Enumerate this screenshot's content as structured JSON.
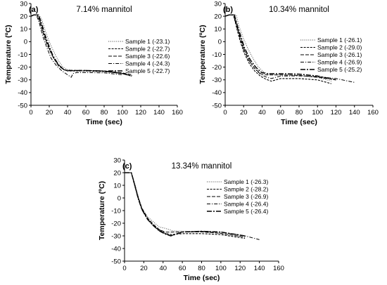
{
  "chart_data": [
    {
      "type": "line",
      "panel_label": "(a)",
      "title": "7.14% mannitol",
      "xlabel": "Time (sec)",
      "ylabel": "Temperature (ºC)",
      "xlim": [
        0,
        160
      ],
      "ylim": [
        -50,
        30
      ],
      "xticks": [
        0,
        20,
        40,
        60,
        80,
        100,
        120,
        140,
        160
      ],
      "yticks": [
        30,
        20,
        10,
        0,
        -10,
        -20,
        -30,
        -40,
        -50
      ],
      "legend_position": "right",
      "series": [
        {
          "name": "Sample 1 (-23.1)",
          "style": "dotted",
          "x": [
            0,
            3,
            9,
            12,
            16,
            20,
            25,
            30,
            35,
            40,
            50,
            60,
            80,
            100,
            112
          ],
          "y": [
            20,
            21,
            21,
            17,
            8,
            0,
            -8,
            -15,
            -20,
            -22,
            -23,
            -23,
            -23.5,
            -25,
            -27
          ]
        },
        {
          "name": "Sample 2 (-22.7)",
          "style": "dashed",
          "x": [
            0,
            3,
            7,
            10,
            14,
            18,
            24,
            30,
            36,
            40,
            50,
            60,
            80,
            100,
            110
          ],
          "y": [
            20,
            21,
            21,
            16,
            6,
            -2,
            -12,
            -18,
            -22,
            -23,
            -23,
            -23,
            -23.5,
            -25,
            -27
          ]
        },
        {
          "name": "Sample 3 (-22.6)",
          "style": "long-dash",
          "x": [
            0,
            3,
            7,
            10,
            14,
            18,
            24,
            30,
            36,
            40,
            50,
            60,
            80,
            100,
            110
          ],
          "y": [
            20,
            21,
            21,
            15,
            5,
            -3,
            -12,
            -19,
            -22,
            -22.6,
            -22.6,
            -22.6,
            -23,
            -24.5,
            -26
          ]
        },
        {
          "name": "Sample 4 (-24.3)",
          "style": "dash-dot",
          "x": [
            0,
            3,
            6,
            9,
            13,
            17,
            22,
            28,
            34,
            40,
            44,
            46,
            50,
            60,
            80,
            100
          ],
          "y": [
            20,
            21,
            21,
            15,
            4,
            -4,
            -13,
            -19,
            -23,
            -26,
            -28,
            -25,
            -24.3,
            -24.3,
            -24.5,
            -26
          ]
        },
        {
          "name": "Sample 5 (-22.7)",
          "style": "long-dash-dot",
          "x": [
            0,
            3,
            8,
            11,
            15,
            19,
            24,
            30,
            36,
            40,
            50,
            60,
            80,
            100,
            110
          ],
          "y": [
            20,
            21,
            21,
            16,
            6,
            -2,
            -11,
            -18,
            -22,
            -22.7,
            -22.7,
            -22.7,
            -23,
            -25,
            -27
          ]
        }
      ]
    },
    {
      "type": "line",
      "panel_label": "(b)",
      "title": "10.34% mannitol",
      "xlabel": "Time (sec)",
      "ylabel": "Temperature (ºC)",
      "xlim": [
        0,
        160
      ],
      "ylim": [
        -50,
        30
      ],
      "xticks": [
        0,
        20,
        40,
        60,
        80,
        100,
        120,
        140,
        160
      ],
      "yticks": [
        30,
        20,
        10,
        0,
        -10,
        -20,
        -30,
        -40,
        -50
      ],
      "legend_position": "right",
      "series": [
        {
          "name": "Sample 1 (-26.1)",
          "style": "dotted",
          "x": [
            0,
            4,
            12,
            15,
            20,
            25,
            30,
            36,
            42,
            50,
            60,
            80,
            100,
            115
          ],
          "y": [
            20,
            21,
            21,
            12,
            2,
            -6,
            -13,
            -20,
            -24,
            -26.1,
            -26.1,
            -26.5,
            -28,
            -31
          ]
        },
        {
          "name": "Sample 2 (-29.0)",
          "style": "dashed",
          "x": [
            0,
            4,
            9,
            12,
            16,
            20,
            26,
            32,
            38,
            44,
            50,
            60,
            80,
            100,
            115
          ],
          "y": [
            20,
            21,
            21,
            12,
            1,
            -8,
            -17,
            -23,
            -27,
            -29.5,
            -31,
            -29,
            -29,
            -30,
            -33
          ]
        },
        {
          "name": "Sample 3 (-26.1)",
          "style": "long-dash",
          "x": [
            0,
            4,
            9,
            12,
            16,
            20,
            26,
            32,
            38,
            44,
            50,
            60,
            80,
            100,
            120
          ],
          "y": [
            20,
            21,
            21,
            13,
            3,
            -6,
            -15,
            -21,
            -25,
            -26.1,
            -26.1,
            -26.1,
            -26.5,
            -28,
            -30
          ]
        },
        {
          "name": "Sample 4 (-26.9)",
          "style": "dash-dot",
          "x": [
            0,
            4,
            10,
            13,
            17,
            21,
            27,
            33,
            39,
            45,
            50,
            60,
            80,
            100,
            120,
            140
          ],
          "y": [
            20,
            21,
            21,
            12,
            2,
            -7,
            -16,
            -22,
            -26,
            -28,
            -29,
            -27,
            -26.9,
            -27.5,
            -29,
            -32
          ]
        },
        {
          "name": "Sample 5 (-25.2)",
          "style": "long-dash-dot",
          "x": [
            0,
            4,
            10,
            13,
            17,
            21,
            27,
            33,
            39,
            45,
            50,
            60,
            80,
            100,
            120
          ],
          "y": [
            20,
            21,
            21,
            13,
            4,
            -5,
            -14,
            -20,
            -24,
            -25.2,
            -25.2,
            -25.2,
            -25.5,
            -27,
            -30
          ]
        }
      ]
    },
    {
      "type": "line",
      "panel_label": "(c)",
      "title": "13.34% mannitol",
      "xlabel": "Time (sec)",
      "ylabel": "Temperature (ºC)",
      "xlim": [
        0,
        160
      ],
      "ylim": [
        -50,
        30
      ],
      "xticks": [
        0,
        20,
        40,
        60,
        80,
        100,
        120,
        140,
        160
      ],
      "yticks": [
        30,
        20,
        10,
        0,
        -10,
        -20,
        -30,
        -40,
        -50
      ],
      "legend_position": "right",
      "series": [
        {
          "name": "Sample 1 (-26.3)",
          "style": "dotted",
          "x": [
            0,
            3,
            7,
            10,
            14,
            18,
            24,
            30,
            36,
            42,
            50,
            60,
            80,
            100,
            125
          ],
          "y": [
            20,
            20,
            20,
            13,
            2,
            -8,
            -15,
            -19,
            -23,
            -24,
            -26,
            -26.3,
            -26.5,
            -28,
            -31
          ]
        },
        {
          "name": "Sample 2 (-28.2)",
          "style": "dashed",
          "x": [
            0,
            3,
            7,
            10,
            14,
            18,
            24,
            30,
            36,
            42,
            48,
            60,
            80,
            100,
            125
          ],
          "y": [
            20,
            20,
            20,
            12,
            0,
            -9,
            -17,
            -22,
            -26,
            -28,
            -29,
            -28.2,
            -28.2,
            -29,
            -32
          ]
        },
        {
          "name": "Sample 3 (-26.9)",
          "style": "long-dash",
          "x": [
            0,
            3,
            7,
            10,
            14,
            18,
            24,
            30,
            36,
            42,
            48,
            60,
            80,
            100,
            125
          ],
          "y": [
            20,
            20,
            20,
            12,
            1,
            -8,
            -16,
            -21,
            -25,
            -27,
            -27,
            -26.9,
            -26.9,
            -28,
            -31
          ]
        },
        {
          "name": "Sample 4 (-26.4)",
          "style": "dash-dot",
          "x": [
            0,
            3,
            7,
            10,
            14,
            18,
            24,
            30,
            36,
            42,
            48,
            60,
            80,
            100,
            125,
            140
          ],
          "y": [
            20,
            20,
            20,
            11,
            0,
            -9,
            -17,
            -22,
            -25,
            -28,
            -30,
            -27,
            -26.4,
            -27,
            -30,
            -33
          ]
        },
        {
          "name": "Sample 5 (-26.4)",
          "style": "long-dash-dot",
          "x": [
            0,
            3,
            7,
            10,
            14,
            18,
            24,
            30,
            36,
            42,
            48,
            60,
            80,
            100,
            125
          ],
          "y": [
            20,
            20,
            20,
            12,
            0,
            -9,
            -17,
            -22,
            -26,
            -28.5,
            -30,
            -27,
            -26.4,
            -27,
            -30
          ]
        }
      ]
    }
  ]
}
